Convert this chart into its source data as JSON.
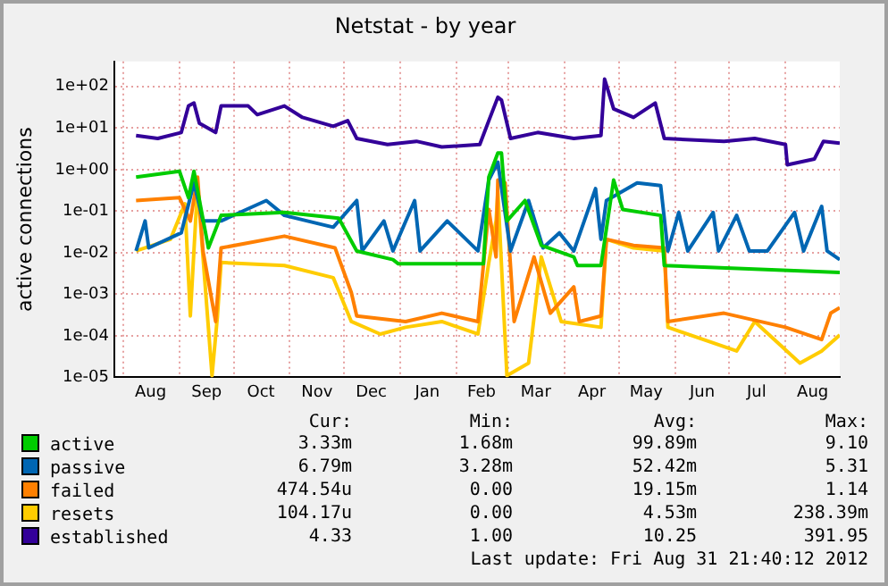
{
  "chart_data": {
    "type": "line",
    "title": "Netstat - by year",
    "ylabel": "active connections",
    "log": "y",
    "grid": true,
    "legend": "bottom",
    "marker": "none",
    "line_style": "solid",
    "xlim": [
      "2011-07-27",
      "2012-08-31"
    ],
    "xticks": [
      {
        "value": "2011-08-01",
        "label": null
      },
      {
        "value": "2011-08-16",
        "label": "Aug"
      },
      {
        "value": "2011-09-01",
        "label": null
      },
      {
        "value": "2011-09-16",
        "label": "Sep"
      },
      {
        "value": "2011-10-01",
        "label": null
      },
      {
        "value": "2011-10-16",
        "label": "Oct"
      },
      {
        "value": "2011-11-01",
        "label": null
      },
      {
        "value": "2011-11-16",
        "label": "Nov"
      },
      {
        "value": "2011-12-01",
        "label": null
      },
      {
        "value": "2011-12-16",
        "label": "Dec"
      },
      {
        "value": "2012-01-01",
        "label": null
      },
      {
        "value": "2012-01-16",
        "label": "Jan"
      },
      {
        "value": "2012-02-01",
        "label": null
      },
      {
        "value": "2012-02-15",
        "label": "Feb"
      },
      {
        "value": "2012-03-01",
        "label": null
      },
      {
        "value": "2012-03-16",
        "label": "Mar"
      },
      {
        "value": "2012-04-01",
        "label": null
      },
      {
        "value": "2012-04-16",
        "label": "Apr"
      },
      {
        "value": "2012-05-01",
        "label": null
      },
      {
        "value": "2012-05-16",
        "label": "May"
      },
      {
        "value": "2012-06-01",
        "label": null
      },
      {
        "value": "2012-06-16",
        "label": "Jun"
      },
      {
        "value": "2012-07-01",
        "label": null
      },
      {
        "value": "2012-07-16",
        "label": "Jul"
      },
      {
        "value": "2012-08-01",
        "label": null
      },
      {
        "value": "2012-08-16",
        "label": "Aug"
      }
    ],
    "ylim": [
      1e-05,
      400
    ],
    "yticks": [
      {
        "value": 1e-05,
        "label": "1e-05"
      },
      {
        "value": 0.0001,
        "label": "1e-04"
      },
      {
        "value": 0.001,
        "label": "1e-03"
      },
      {
        "value": 0.01,
        "label": "1e-02"
      },
      {
        "value": 0.1,
        "label": "1e-01"
      },
      {
        "value": 1,
        "label": "1e+00"
      },
      {
        "value": 10,
        "label": "1e+01"
      },
      {
        "value": 100,
        "label": "1e+02"
      }
    ],
    "series": [
      {
        "name": "active",
        "color": "#00cc00",
        "x": [
          "2011-08-08",
          "2011-09-01",
          "2011-09-06",
          "2011-09-09",
          "2011-09-17",
          "2011-09-24",
          "2011-10-29",
          "2011-11-28",
          "2011-12-08",
          "2011-12-28",
          "2011-12-31",
          "2012-02-16",
          "2012-02-19",
          "2012-02-24",
          "2012-02-26",
          "2012-02-29",
          "2012-03-10",
          "2012-03-19",
          "2012-04-06",
          "2012-04-08",
          "2012-04-21",
          "2012-04-28",
          "2012-05-03",
          "2012-05-24",
          "2012-05-26",
          "2012-08-31"
        ],
        "values": [
          0.66,
          0.91,
          0.21,
          0.91,
          0.013,
          0.079,
          0.093,
          0.068,
          0.011,
          0.0068,
          0.0054,
          0.0054,
          0.66,
          2.5,
          2.5,
          0.058,
          0.18,
          0.015,
          0.0079,
          0.0049,
          0.0049,
          0.56,
          0.11,
          0.079,
          0.0049,
          0.00333
        ]
      },
      {
        "name": "passive",
        "color": "#0066b3",
        "x": [
          "2011-08-08",
          "2011-08-13",
          "2011-08-15",
          "2011-09-02",
          "2011-09-09",
          "2011-09-14",
          "2011-09-24",
          "2011-10-19",
          "2011-10-29",
          "2011-11-25",
          "2011-12-08",
          "2011-12-11",
          "2011-12-23",
          "2011-12-28",
          "2012-01-09",
          "2012-01-12",
          "2012-01-27",
          "2012-02-13",
          "2012-02-19",
          "2012-02-24",
          "2012-03-02",
          "2012-03-12",
          "2012-03-20",
          "2012-03-29",
          "2012-04-06",
          "2012-04-18",
          "2012-04-21",
          "2012-04-24",
          "2012-05-11",
          "2012-05-24",
          "2012-05-28",
          "2012-06-03",
          "2012-06-08",
          "2012-06-22",
          "2012-06-25",
          "2012-07-05",
          "2012-07-12",
          "2012-07-22",
          "2012-08-06",
          "2012-08-11",
          "2012-08-21",
          "2012-08-24",
          "2012-08-31"
        ],
        "values": [
          0.011,
          0.058,
          0.013,
          0.03,
          0.48,
          0.058,
          0.058,
          0.18,
          0.079,
          0.041,
          0.18,
          0.011,
          0.058,
          0.011,
          0.18,
          0.011,
          0.058,
          0.011,
          0.56,
          1.5,
          0.011,
          0.18,
          0.013,
          0.03,
          0.011,
          0.35,
          0.021,
          0.18,
          0.48,
          0.41,
          0.011,
          0.093,
          0.011,
          0.093,
          0.011,
          0.079,
          0.011,
          0.011,
          0.093,
          0.011,
          0.13,
          0.011,
          0.00679
        ]
      },
      {
        "name": "failed",
        "color": "#ff8000",
        "x": [
          "2011-08-08",
          "2011-09-01",
          "2011-09-07",
          "2011-09-11",
          "2011-09-14",
          "2011-09-21",
          "2011-09-24",
          "2011-10-29",
          "2011-11-26",
          "2011-12-05",
          "2011-12-08",
          "2012-01-04",
          "2012-01-24",
          "2012-02-13",
          "2012-02-19",
          "2012-02-23",
          "2012-02-24",
          "2012-02-28",
          "2012-03-04",
          "2012-03-15",
          "2012-03-24",
          "2012-04-06",
          "2012-04-09",
          "2012-04-21",
          "2012-04-24",
          "2012-05-09",
          "2012-05-26",
          "2012-05-28",
          "2012-06-28",
          "2012-08-01",
          "2012-08-21",
          "2012-08-26",
          "2012-08-31"
        ],
        "values": [
          0.18,
          0.21,
          0.058,
          0.66,
          0.011,
          0.00022,
          0.013,
          0.025,
          0.013,
          0.0011,
          0.0003,
          0.00022,
          0.00035,
          0.00022,
          0.11,
          0.0079,
          0.56,
          0.48,
          0.00022,
          0.0079,
          0.00035,
          0.0015,
          0.00022,
          0.0003,
          0.021,
          0.015,
          0.013,
          0.00022,
          0.00035,
          0.00016,
          8.1e-05,
          0.00035,
          0.000475
        ]
      },
      {
        "name": "resets",
        "color": "#ffcc00",
        "x": [
          "2011-08-08",
          "2011-08-27",
          "2011-09-04",
          "2011-09-07",
          "2011-09-11",
          "2011-09-19",
          "2011-09-22",
          "2011-09-24",
          "2011-10-29",
          "2011-11-25",
          "2011-12-05",
          "2011-12-21",
          "2012-01-04",
          "2012-01-24",
          "2012-02-13",
          "2012-02-19",
          "2012-02-23",
          "2012-02-24",
          "2012-02-29",
          "2012-03-12",
          "2012-03-19",
          "2012-03-30",
          "2012-04-21",
          "2012-04-24",
          "2012-05-09",
          "2012-05-26",
          "2012-05-28",
          "2012-07-05",
          "2012-07-15",
          "2012-08-09",
          "2012-08-21",
          "2012-08-31"
        ],
        "values": [
          0.011,
          0.021,
          0.15,
          0.0003,
          0.41,
          1.1e-05,
          0.0003,
          0.0058,
          0.0049,
          0.0025,
          0.00022,
          0.00011,
          0.00016,
          0.00022,
          0.00011,
          0.0058,
          0.058,
          0.3,
          1.1e-05,
          2.2e-05,
          0.0079,
          0.00022,
          0.00016,
          0.021,
          0.013,
          0.011,
          0.00016,
          4.3e-05,
          0.00022,
          2.2e-05,
          4.3e-05,
          0.000104
        ]
      },
      {
        "name": "established",
        "color": "#330099",
        "x": [
          "2011-08-08",
          "2011-08-20",
          "2011-09-02",
          "2011-09-06",
          "2011-09-09",
          "2011-09-12",
          "2011-09-21",
          "2011-09-24",
          "2011-10-09",
          "2011-10-14",
          "2011-10-29",
          "2011-11-08",
          "2011-11-25",
          "2011-12-03",
          "2011-12-08",
          "2011-12-25",
          "2012-01-10",
          "2012-01-24",
          "2012-02-14",
          "2012-02-19",
          "2012-02-24",
          "2012-02-26",
          "2012-03-02",
          "2012-03-17",
          "2012-04-06",
          "2012-04-21",
          "2012-04-23",
          "2012-04-28",
          "2012-05-09",
          "2012-05-21",
          "2012-05-26",
          "2012-06-28",
          "2012-07-15",
          "2012-08-01",
          "2012-08-02",
          "2012-08-17",
          "2012-08-22",
          "2012-08-31"
        ],
        "values": [
          6.6,
          5.6,
          7.8,
          34,
          40,
          13,
          7.8,
          34,
          34,
          21,
          34,
          18,
          11,
          15,
          5.6,
          4,
          4.8,
          3.5,
          4,
          15,
          55,
          47,
          5.6,
          7.8,
          5.6,
          6.6,
          150,
          29,
          18,
          40,
          5.6,
          4.8,
          5.6,
          4,
          1.3,
          1.8,
          4.8,
          4.33
        ]
      }
    ],
    "annotations": [
      "Cur:",
      "Min:",
      "Avg:",
      "Max:",
      "3.33m",
      "1.68m",
      "99.89m",
      "9.10",
      "6.79m",
      "3.28m",
      "52.42m",
      "5.31",
      "474.54u",
      "0.00",
      "19.15m",
      "1.14",
      "104.17u",
      "0.00",
      "4.53m",
      "238.39m",
      "4.33",
      "1.00",
      "10.25",
      "391.95",
      "Last update: Fri Aug 31 21:40:12 2012"
    ]
  }
}
